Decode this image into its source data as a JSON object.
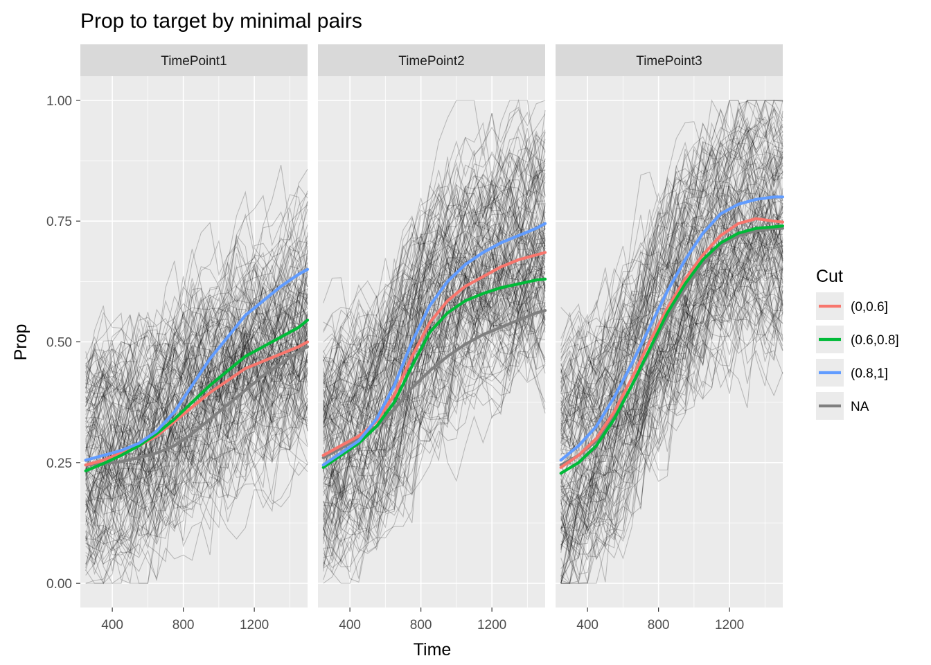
{
  "chart_data": {
    "type": "line",
    "title": "Prop to target by minimal pairs",
    "xlabel": "Time",
    "ylabel": "Prop",
    "xlim": [
      220,
      1500
    ],
    "ylim": [
      -0.05,
      1.05
    ],
    "x_ticks": [
      400,
      800,
      1200
    ],
    "x_tick_labels": [
      "400",
      "800",
      "1200"
    ],
    "y_ticks": [
      0,
      0.25,
      0.5,
      0.75,
      1
    ],
    "y_tick_labels": [
      "0.00",
      "0.25",
      "0.50",
      "0.75",
      "1.00"
    ],
    "grid": true,
    "legend": {
      "title": "Cut",
      "position": "right",
      "entries": [
        {
          "label": "(0,0.6]",
          "color": "#F8766D"
        },
        {
          "label": "(0.6,0.8]",
          "color": "#00BA38"
        },
        {
          "label": "(0.8,1]",
          "color": "#619CFF"
        },
        {
          "label": "NA",
          "color": "#7F7F7F"
        }
      ]
    },
    "x": [
      250,
      350,
      450,
      550,
      650,
      750,
      850,
      950,
      1050,
      1150,
      1250,
      1350,
      1450,
      1500
    ],
    "background_individual_trajectories": {
      "description_visible": "many thin grey per-participant lines",
      "color": "#000000",
      "opacity": 0.25
    },
    "facets": [
      {
        "label": "TimePoint1",
        "series": [
          {
            "name": "(0,0.6]",
            "color": "#F8766D",
            "y": [
              0.245,
              0.255,
              0.27,
              0.285,
              0.305,
              0.335,
              0.365,
              0.395,
              0.42,
              0.445,
              0.46,
              0.475,
              0.49,
              0.5
            ]
          },
          {
            "name": "(0.6,0.8]",
            "color": "#00BA38",
            "y": [
              0.233,
              0.248,
              0.265,
              0.285,
              0.31,
              0.34,
              0.375,
              0.41,
              0.44,
              0.47,
              0.49,
              0.51,
              0.53,
              0.545
            ]
          },
          {
            "name": "(0.8,1]",
            "color": "#619CFF",
            "y": [
              0.255,
              0.265,
              0.275,
              0.29,
              0.315,
              0.355,
              0.41,
              0.465,
              0.51,
              0.555,
              0.585,
              0.615,
              0.64,
              0.65
            ]
          },
          {
            "name": "NA",
            "color": "#7F7F7F",
            "y": [
              0.245,
              0.248,
              0.252,
              0.26,
              0.27,
              0.285,
              0.31,
              0.34,
              0.37,
              0.4,
              0.43,
              0.455,
              0.48,
              0.49
            ]
          }
        ]
      },
      {
        "label": "TimePoint2",
        "series": [
          {
            "name": "(0,0.6]",
            "color": "#F8766D",
            "y": [
              0.265,
              0.285,
              0.305,
              0.335,
              0.39,
              0.47,
              0.54,
              0.585,
              0.615,
              0.635,
              0.655,
              0.67,
              0.68,
              0.685
            ]
          },
          {
            "name": "(0.6,0.8]",
            "color": "#00BA38",
            "y": [
              0.24,
              0.265,
              0.29,
              0.325,
              0.375,
              0.45,
              0.52,
              0.56,
              0.585,
              0.6,
              0.612,
              0.62,
              0.628,
              0.63
            ]
          },
          {
            "name": "(0.8,1]",
            "color": "#619CFF",
            "y": [
              0.245,
              0.27,
              0.295,
              0.34,
              0.41,
              0.5,
              0.575,
              0.625,
              0.66,
              0.685,
              0.705,
              0.72,
              0.735,
              0.745
            ]
          },
          {
            "name": "NA",
            "color": "#7F7F7F",
            "y": [
              0.26,
              0.28,
              0.3,
              0.325,
              0.36,
              0.405,
              0.44,
              0.47,
              0.495,
              0.515,
              0.53,
              0.545,
              0.56,
              0.565
            ]
          }
        ]
      },
      {
        "label": "TimePoint3",
        "series": [
          {
            "name": "(0,0.6]",
            "color": "#F8766D",
            "y": [
              0.24,
              0.265,
              0.3,
              0.355,
              0.425,
              0.5,
              0.57,
              0.63,
              0.68,
              0.72,
              0.745,
              0.755,
              0.75,
              0.748
            ]
          },
          {
            "name": "(0.6,0.8]",
            "color": "#00BA38",
            "y": [
              0.228,
              0.25,
              0.285,
              0.34,
              0.41,
              0.485,
              0.56,
              0.62,
              0.67,
              0.705,
              0.725,
              0.735,
              0.738,
              0.74
            ]
          },
          {
            "name": "(0.8,1]",
            "color": "#619CFF",
            "y": [
              0.255,
              0.285,
              0.325,
              0.385,
              0.455,
              0.53,
              0.605,
              0.67,
              0.725,
              0.765,
              0.785,
              0.795,
              0.8,
              0.8
            ]
          },
          {
            "name": "NA",
            "color": "#7F7F7F",
            "y": [
              0.245,
              0.265,
              0.295,
              0.345,
              0.41,
              0.48,
              0.55,
              0.61,
              0.66,
              0.7,
              0.72,
              0.73,
              0.735,
              0.735
            ]
          }
        ]
      }
    ]
  }
}
